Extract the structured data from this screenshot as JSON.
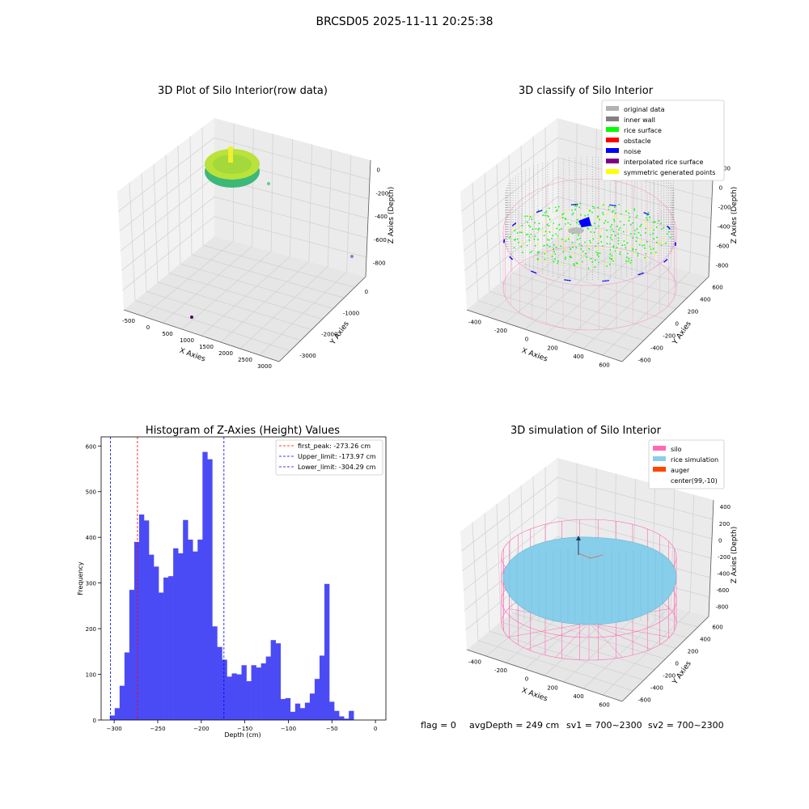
{
  "figure": {
    "suptitle": "BRCSD05 2025-11-11 20:25:38",
    "status_line": {
      "flag": "flag = 0",
      "avg_depth": "avgDepth = 249 cm",
      "sv1": "sv1 = 700~2300",
      "sv2": "sv2 = 700~2300"
    }
  },
  "colors": {
    "hist_bar": "#4b4bf6",
    "first_peak_line": "#ff0000",
    "limit_line": "#0000ff",
    "grid": "#dcdcdc",
    "pane": "#f2f2f2",
    "silo": "#ff69b4",
    "rice_simulation": "#87ceeb",
    "auger": "#ff4500",
    "original_data": "#b3b3b3",
    "inner_wall": "#808080",
    "rice_surface": "#00ff00",
    "obstacle": "#ff0000",
    "noise": "#0000ff",
    "interpolated_rice_surface": "#800080",
    "symmetric_generated_points": "#ffff00"
  },
  "chart_data": [
    {
      "type": "scatter",
      "title": "3D Plot of Silo Interior(row data)",
      "xlabel": "X Axies",
      "ylabel": "Y Axies",
      "zlabel": "Z Axies (Depth)",
      "x_ticks": [
        -500,
        0,
        500,
        1000,
        1500,
        2000,
        2500,
        3000
      ],
      "y_ticks": [
        0,
        -1000,
        -2000,
        -3000
      ],
      "z_ticks": [
        0,
        -200,
        -400,
        -600,
        -800
      ],
      "points": [
        {
          "x": 2200,
          "y": -600,
          "z": -840
        },
        {
          "x": 1400,
          "y": -700,
          "z": -180
        },
        {
          "x": 700,
          "y": -3000,
          "z": -950
        }
      ]
    },
    {
      "type": "scatter",
      "title": "3D classify of Silo Interior",
      "xlabel": "X Axies",
      "ylabel": "Y Axies",
      "zlabel": "Z Axies (Depth)",
      "x_ticks": [
        -400,
        -200,
        0,
        200,
        400,
        600
      ],
      "y_ticks": [
        600,
        400,
        200,
        0,
        -200,
        -400,
        -600
      ],
      "z_ticks": [
        200,
        0,
        -200,
        -400,
        -600,
        -800
      ],
      "legend": [
        {
          "label": "original data",
          "color_key": "original_data"
        },
        {
          "label": "inner wall",
          "color_key": "inner_wall"
        },
        {
          "label": "rice surface",
          "color_key": "rice_surface"
        },
        {
          "label": "obstacle",
          "color_key": "obstacle"
        },
        {
          "label": "noise",
          "color_key": "noise"
        },
        {
          "label": "interpolated rice surface",
          "color_key": "interpolated_rice_surface"
        },
        {
          "label": "symmetric generated points",
          "color_key": "symmetric_generated_points"
        }
      ]
    },
    {
      "type": "bar",
      "title": "Histogram of Z-Axies (Height) Values",
      "xlabel": "Depth (cm)",
      "ylabel": "Frequency",
      "xlim": [
        -315,
        12
      ],
      "ylim": [
        0,
        620
      ],
      "x_ticks": [
        -300,
        -250,
        -200,
        -150,
        -100,
        -50,
        0
      ],
      "y_ticks": [
        0,
        100,
        200,
        300,
        400,
        500,
        600
      ],
      "bin_start": -305,
      "bin_width": 5.6,
      "values": [
        10,
        26,
        75,
        148,
        285,
        390,
        450,
        437,
        362,
        336,
        279,
        312,
        315,
        376,
        365,
        438,
        395,
        369,
        395,
        587,
        571,
        205,
        160,
        132,
        95,
        102,
        100,
        120,
        85,
        120,
        115,
        124,
        139,
        175,
        168,
        46,
        48,
        18,
        36,
        26,
        38,
        58,
        90,
        141,
        298,
        40,
        20,
        8,
        3,
        20
      ],
      "vlines": [
        {
          "x": -273.26,
          "label": "first_peak: -273.26 cm",
          "color_key": "first_peak_line"
        },
        {
          "x": -173.97,
          "label": "Upper_limit: -173.97 cm",
          "color_key": "limit_line"
        },
        {
          "x": -304.29,
          "label": "Lower_limit: -304.29 cm",
          "color_key": "limit_line"
        }
      ]
    },
    {
      "type": "area",
      "title": "3D simulation of Silo Interior",
      "xlabel": "X Axies",
      "ylabel": "Y Axies",
      "zlabel": "Z Axies (Depth)",
      "x_ticks": [
        -400,
        -200,
        0,
        200,
        400,
        600
      ],
      "y_ticks": [
        600,
        400,
        200,
        0,
        -200,
        -400,
        -600
      ],
      "z_ticks": [
        400,
        200,
        0,
        -200,
        -400,
        -600,
        -800
      ],
      "legend": [
        {
          "label": "silo",
          "color_key": "silo"
        },
        {
          "label": "rice simulation",
          "color_key": "rice_simulation"
        },
        {
          "label": "auger",
          "color_key": "auger"
        },
        {
          "label": "center(99,-10)",
          "color_key": ""
        }
      ]
    }
  ]
}
